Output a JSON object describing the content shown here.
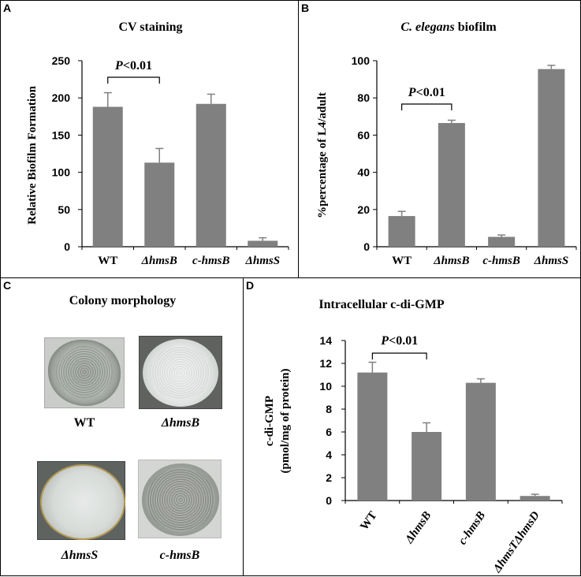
{
  "panels": {
    "a": {
      "letter": "A",
      "title": "CV staining"
    },
    "b": {
      "letter": "B",
      "title_italic": "C. elegans",
      "title_rest": " biofilm"
    },
    "c": {
      "letter": "C",
      "title": "Colony morphology"
    },
    "d": {
      "letter": "D",
      "title": "Intracellular c-di-GMP"
    }
  },
  "colors": {
    "bar": "#808080",
    "axis": "#000000"
  },
  "colonies": [
    {
      "label": "WT",
      "italic": false,
      "style": "textured-irregular-edge"
    },
    {
      "label": "ΔhmsB",
      "italic": true,
      "style": "smooth-round"
    },
    {
      "label": "ΔhmsS",
      "italic": true,
      "style": "smooth-round-rim"
    },
    {
      "label": "c-hmsB",
      "italic": true,
      "style": "textured-irregular-edge"
    }
  ],
  "chart_data": [
    {
      "id": "A",
      "type": "bar",
      "title": "CV staining",
      "ylabel": "Relative Biofilm Formation",
      "xlabel": "",
      "categories": [
        "WT",
        "ΔhmsB",
        "c-hmsB",
        "ΔhmsS"
      ],
      "italic_categories": [
        false,
        true,
        true,
        true
      ],
      "values": [
        188,
        113,
        192,
        8
      ],
      "errors": [
        19,
        19,
        13,
        4
      ],
      "ylim": [
        0,
        250
      ],
      "yticks": [
        0,
        50,
        100,
        150,
        200,
        250
      ],
      "significance": {
        "label_italic": "P",
        "label_rest": "<0.01",
        "between": [
          0,
          1
        ]
      }
    },
    {
      "id": "B",
      "type": "bar",
      "title": "C. elegans biofilm",
      "ylabel": "%percentage of L4/adult",
      "xlabel": "",
      "categories": [
        "WT",
        "ΔhmsB",
        "c-hmsB",
        "ΔhmsS"
      ],
      "italic_categories": [
        false,
        true,
        true,
        true
      ],
      "values": [
        16.5,
        66.5,
        5.3,
        95.5
      ],
      "errors": [
        2.5,
        1.5,
        1.0,
        2.0
      ],
      "ylim": [
        0,
        100
      ],
      "yticks": [
        0,
        20,
        40,
        60,
        80,
        100
      ],
      "significance": {
        "label_italic": "P",
        "label_rest": "<0.01",
        "between": [
          0,
          1
        ]
      }
    },
    {
      "id": "D",
      "type": "bar",
      "title": "Intracellular c-di-GMP",
      "ylabel_lines": [
        "c-di-GMP",
        "(pmol/mg of protein)"
      ],
      "xlabel": "",
      "categories": [
        "WT",
        "ΔhmsB",
        "c-hmsB",
        "ΔhmsTΔhmsD"
      ],
      "italic_categories": [
        false,
        true,
        true,
        true
      ],
      "values": [
        11.2,
        6.0,
        10.3,
        0.4
      ],
      "errors": [
        0.9,
        0.8,
        0.35,
        0.15
      ],
      "ylim": [
        0,
        14
      ],
      "yticks": [
        0,
        2,
        4,
        6,
        8,
        10,
        12,
        14
      ],
      "significance": {
        "label_italic": "P",
        "label_rest": "<0.01",
        "between": [
          0,
          1
        ]
      }
    }
  ]
}
